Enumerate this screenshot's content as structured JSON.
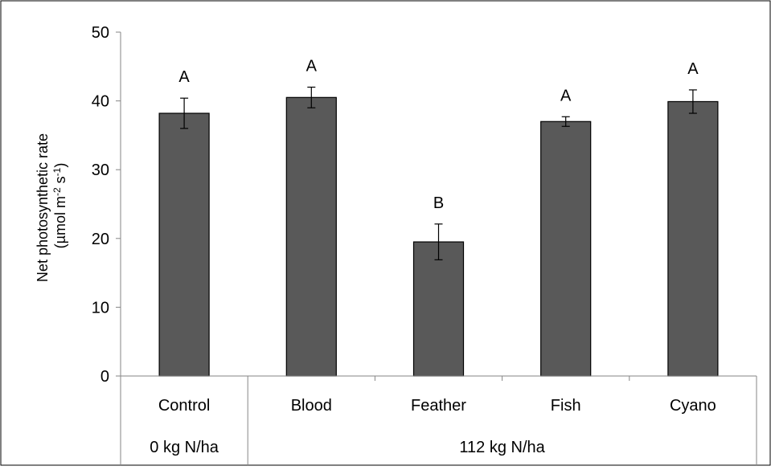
{
  "chart_data": {
    "type": "bar",
    "categories": [
      "Control",
      "Blood",
      "Feather",
      "Fish",
      "Cyano"
    ],
    "values": [
      38.2,
      40.5,
      19.5,
      37.0,
      39.9
    ],
    "errors": [
      2.2,
      1.5,
      2.6,
      0.7,
      1.7
    ],
    "letters": [
      "A",
      "A",
      "B",
      "A",
      "A"
    ],
    "groups": [
      {
        "label": "0 kg N/ha",
        "categories": [
          "Control"
        ]
      },
      {
        "label": "112 kg N/ha",
        "categories": [
          "Blood",
          "Feather",
          "Fish",
          "Cyano"
        ]
      }
    ],
    "ylabel_line1": "Net photosynthetic rate",
    "ylabel_line2": "(µmol m",
    "ylabel_sup1": "-2",
    "ylabel_mid": " s",
    "ylabel_sup2": "-1",
    "ylabel_end": ")",
    "ylim": [
      0,
      50
    ],
    "yticks": [
      "0",
      "10",
      "20",
      "30",
      "40",
      "50"
    ],
    "bar_color": "#595959",
    "grid": false,
    "legend": "none"
  }
}
